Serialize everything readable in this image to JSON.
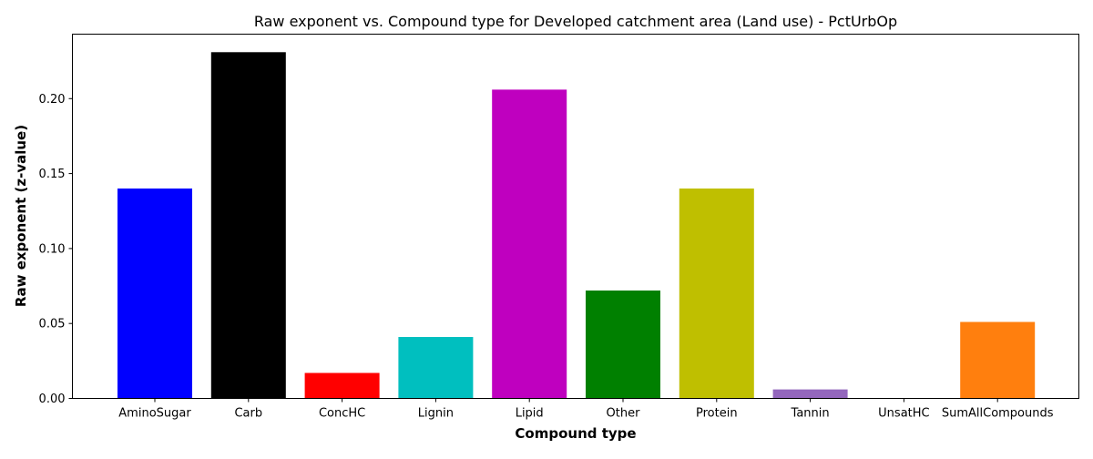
{
  "chart_data": {
    "type": "bar",
    "title": "Raw exponent vs. Compound type for Developed catchment area (Land use) - PctUrbOp",
    "xlabel": "Compound type",
    "ylabel": "Raw exponent (z-value)",
    "categories": [
      "AminoSugar",
      "Carb",
      "ConcHC",
      "Lignin",
      "Lipid",
      "Other",
      "Protein",
      "Tannin",
      "UnsatHC",
      "SumAllCompounds"
    ],
    "values": [
      0.14,
      0.231,
      0.017,
      0.041,
      0.206,
      0.072,
      0.14,
      0.006,
      0.0,
      0.051
    ],
    "colors": [
      "#0000ff",
      "#000000",
      "#ff0000",
      "#00bfbf",
      "#bf00bf",
      "#008000",
      "#bfbf00",
      "#9467bd",
      "#ffffff",
      "#ff7f0e"
    ],
    "ylim": [
      0,
      0.243
    ],
    "yticks": [
      0.0,
      0.05,
      0.1,
      0.15,
      0.2
    ],
    "ytick_labels": [
      "0.00",
      "0.05",
      "0.10",
      "0.15",
      "0.20"
    ],
    "grid": false
  }
}
